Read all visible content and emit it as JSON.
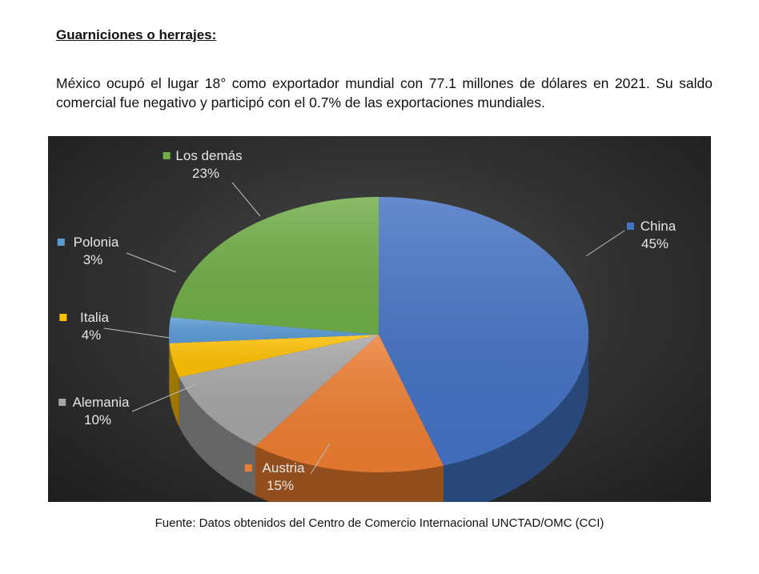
{
  "document": {
    "heading": "Guarniciones o herrajes:",
    "paragraph": "México ocupó el lugar 18° como exportador mundial con 77.1 millones de dólares en 2021. Su saldo comercial fue negativo y participó con el 0.7% de las exportaciones mundiales.",
    "source": "Fuente: Datos obtenidos del Centro de Comercio Internacional UNCTAD/OMC (CCI)"
  },
  "chart_data": {
    "type": "pie",
    "style": "3d",
    "background": "#333333",
    "legend": "none",
    "slices": [
      {
        "label": "China",
        "value": 45,
        "display": "45%",
        "color": "#4472C4"
      },
      {
        "label": "Austria",
        "value": 15,
        "display": "15%",
        "color": "#ED7D31"
      },
      {
        "label": "Alemania",
        "value": 10,
        "display": "10%",
        "color": "#A5A5A5"
      },
      {
        "label": "Italia",
        "value": 4,
        "display": "4%",
        "color": "#FFC000"
      },
      {
        "label": "Polonia",
        "value": 3,
        "display": "3%",
        "color": "#5B9BD5"
      },
      {
        "label": "Los demás",
        "value": 23,
        "display": "23%",
        "color": "#70AD47"
      }
    ]
  }
}
